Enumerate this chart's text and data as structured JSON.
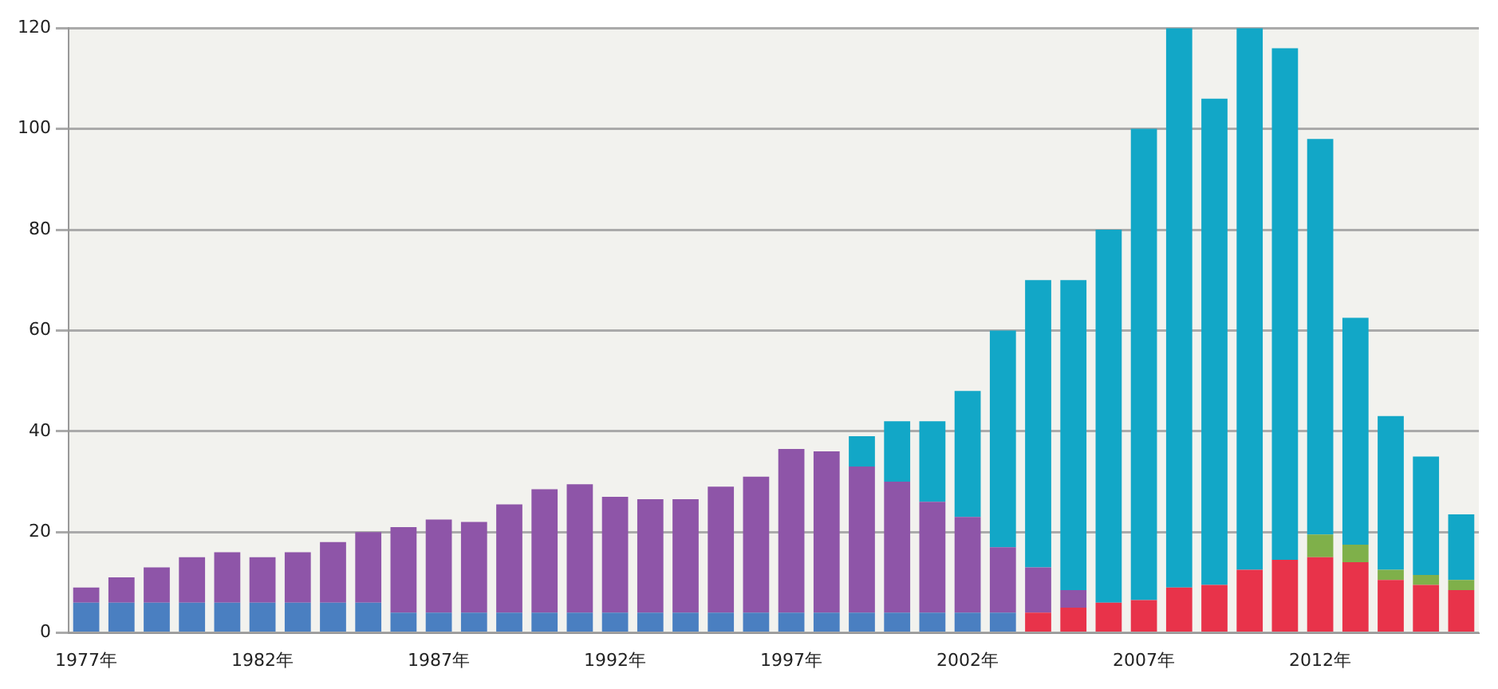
{
  "chart_data": {
    "type": "bar",
    "stacked": true,
    "grid": "y",
    "legend": false,
    "categories": [
      "1977年",
      null,
      null,
      null,
      null,
      "1982年",
      null,
      null,
      null,
      null,
      "1987年",
      null,
      null,
      null,
      null,
      "1992年",
      null,
      null,
      null,
      null,
      "1997年",
      null,
      null,
      null,
      null,
      "2002年",
      null,
      null,
      null,
      null,
      "2007年",
      null,
      null,
      null,
      null,
      "2012年",
      null,
      null,
      null,
      null
    ],
    "ylim": [
      0,
      120
    ],
    "yticks": [
      0,
      20,
      40,
      60,
      80,
      100,
      120
    ],
    "series": [
      {
        "color": "#4a7fc1",
        "values": [
          6,
          6,
          6,
          6,
          6,
          6,
          6,
          6,
          6,
          4,
          4,
          4,
          4,
          4,
          4,
          4,
          4,
          4,
          4,
          4,
          4,
          4,
          4,
          4,
          4,
          4,
          4,
          null,
          null,
          null,
          null,
          null,
          null,
          null,
          null,
          null,
          null,
          null,
          null,
          null
        ]
      },
      {
        "color": "#e8334a",
        "values": [
          null,
          null,
          null,
          null,
          null,
          null,
          null,
          null,
          null,
          null,
          null,
          null,
          null,
          null,
          null,
          null,
          null,
          null,
          null,
          null,
          null,
          null,
          null,
          null,
          null,
          null,
          null,
          4,
          5,
          6,
          6.5,
          9,
          9.5,
          12.5,
          14.5,
          15,
          14,
          10.5,
          9.5,
          8.5
        ]
      },
      {
        "color": "#7fb04a",
        "values": [
          null,
          null,
          null,
          null,
          null,
          null,
          null,
          null,
          null,
          null,
          null,
          null,
          null,
          null,
          null,
          null,
          null,
          null,
          null,
          null,
          null,
          null,
          null,
          null,
          null,
          null,
          null,
          null,
          null,
          null,
          null,
          null,
          null,
          null,
          null,
          4.5,
          3.5,
          2,
          2,
          2
        ]
      },
      {
        "color": "#8e55a8",
        "values": [
          3,
          5,
          7,
          9,
          10,
          9,
          10,
          12,
          14,
          17,
          18.5,
          18,
          21.5,
          24.5,
          25.5,
          23,
          22.5,
          22.5,
          25,
          27,
          32.5,
          32,
          29,
          26,
          22,
          19,
          13,
          9,
          3.5,
          null,
          null,
          null,
          null,
          null,
          null,
          null,
          null,
          null,
          null,
          null
        ]
      },
      {
        "color": "#12a7c7",
        "values": [
          null,
          null,
          null,
          null,
          null,
          null,
          null,
          null,
          null,
          null,
          null,
          null,
          null,
          null,
          null,
          null,
          null,
          null,
          null,
          null,
          null,
          null,
          6,
          12,
          16,
          25,
          43,
          57,
          61.5,
          74,
          93.5,
          111,
          96.5,
          107.5,
          101.5,
          78.5,
          45,
          30.5,
          23.5,
          13
        ]
      }
    ]
  }
}
